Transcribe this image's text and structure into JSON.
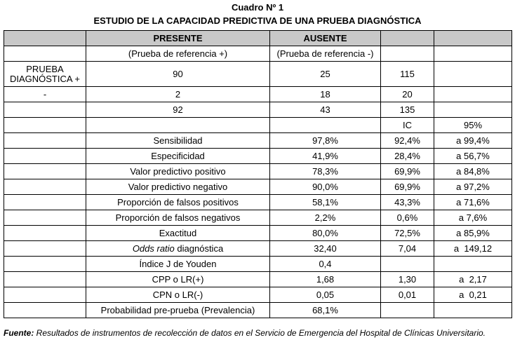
{
  "caption": {
    "number": "Cuadro Nº 1",
    "title": "ESTUDIO DE LA CAPACIDAD PREDICTIVA DE UNA PRUEBA DIAGNÓSTICA"
  },
  "header": {
    "presente": "PRESENTE",
    "ausente": "AUSENTE",
    "presente_sub": "(Prueba de referencia +)",
    "ausente_sub": "(Prueba de referencia -)"
  },
  "contingency": {
    "row_pos_label": "PRUEBA DIAGNÓSTICA +",
    "row_pos": [
      "90",
      "25",
      "115"
    ],
    "row_neg_label": "-",
    "row_neg": [
      "2",
      "18",
      "20"
    ],
    "row_total": [
      "92",
      "43",
      "135"
    ]
  },
  "ci_header": {
    "ic": "IC",
    "pct": "95%"
  },
  "metrics": [
    {
      "label": "Sensibilidad",
      "value": "97,8%",
      "ci_low": "92,4%",
      "ci_high": "a 99,4%"
    },
    {
      "label": "Especificidad",
      "value": "41,9%",
      "ci_low": "28,4%",
      "ci_high": "a 56,7%"
    },
    {
      "label": "Valor predictivo positivo",
      "value": "78,3%",
      "ci_low": "69,9%",
      "ci_high": "a 84,8%"
    },
    {
      "label": "Valor predictivo negativo",
      "value": "90,0%",
      "ci_low": "69,9%",
      "ci_high": "a 97,2%"
    },
    {
      "label": "Proporción de falsos positivos",
      "value": "58,1%",
      "ci_low": "43,3%",
      "ci_high": "a 71,6%"
    },
    {
      "label": "Proporción de falsos negativos",
      "value": "2,2%",
      "ci_low": "0,6%",
      "ci_high": "a 7,6%"
    },
    {
      "label": "Exactitud",
      "value": "80,0%",
      "ci_low": "72,5%",
      "ci_high": "a 85,9%"
    },
    {
      "label_italic": "Odds ratio",
      "label_rest": " diagnóstica",
      "value": "32,40",
      "ci_low": "7,04",
      "ci_high": "a  149,12"
    },
    {
      "label": "Índice J de Youden",
      "value": "0,4",
      "ci_low": "",
      "ci_high": ""
    },
    {
      "label": "CPP o LR(+)",
      "value": "1,68",
      "ci_low": "1,30",
      "ci_high": "a  2,17"
    },
    {
      "label": "CPN o LR(-)",
      "value": "0,05",
      "ci_low": "0,01",
      "ci_high": "a  0,21"
    },
    {
      "label": "Probabilidad pre-prueba (Prevalencia)",
      "value": "68,1%",
      "ci_low": "",
      "ci_high": ""
    }
  ],
  "footer": {
    "label": "Fuente:",
    "text": " Resultados de instrumentos de recolección de datos en el Servicio de Emergencia del  Hospital de Clínicas Universitario."
  }
}
